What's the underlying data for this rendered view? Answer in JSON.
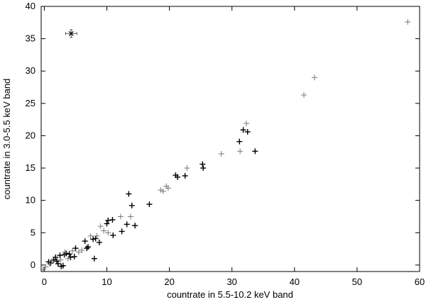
{
  "chart_data": {
    "type": "scatter",
    "title": "",
    "xlabel": "countrate in 5.5-10.2 keV band",
    "ylabel": "countrate in 3.0-5.5 keV band",
    "xlim": [
      -0.5,
      60
    ],
    "ylim": [
      -1,
      40
    ],
    "xticks": [
      0,
      10,
      20,
      30,
      40,
      50,
      60
    ],
    "yticks": [
      0,
      5,
      10,
      15,
      20,
      25,
      30,
      35,
      40
    ],
    "grid": false,
    "legend": "none",
    "series": [
      {
        "marker": "plus",
        "color": "#000000",
        "points": [
          [
            0.7,
            0.5
          ],
          [
            1.0,
            0.3
          ],
          [
            1.5,
            0.8
          ],
          [
            1.8,
            1.2
          ],
          [
            2.0,
            0.6
          ],
          [
            2.2,
            0.2
          ],
          [
            2.5,
            1.5
          ],
          [
            2.7,
            -0.2
          ],
          [
            3.0,
            -0.1
          ],
          [
            3.2,
            1.6
          ],
          [
            3.5,
            1.8
          ],
          [
            4.0,
            1.7
          ],
          [
            4.2,
            1.2
          ],
          [
            4.8,
            1.3
          ],
          [
            5.0,
            2.6
          ],
          [
            6.5,
            3.7
          ],
          [
            6.8,
            2.6
          ],
          [
            7.0,
            2.8
          ],
          [
            7.8,
            4.0
          ],
          [
            8.0,
            1.0
          ],
          [
            8.2,
            4.1
          ],
          [
            8.8,
            3.5
          ],
          [
            10.0,
            6.4
          ],
          [
            10.2,
            6.9
          ],
          [
            10.9,
            7.0
          ],
          [
            11.0,
            4.6
          ],
          [
            12.4,
            5.2
          ],
          [
            13.2,
            6.3
          ],
          [
            13.5,
            11.0
          ],
          [
            14.0,
            9.2
          ],
          [
            14.5,
            6.1
          ],
          [
            16.8,
            9.4
          ],
          [
            21.0,
            13.9
          ],
          [
            21.3,
            13.6
          ],
          [
            22.5,
            13.8
          ],
          [
            25.3,
            15.6
          ],
          [
            25.4,
            15.0
          ],
          [
            31.2,
            19.1
          ],
          [
            31.8,
            20.9
          ],
          [
            32.5,
            20.6
          ],
          [
            33.7,
            17.6
          ]
        ]
      },
      {
        "marker": "plus",
        "color": "#777777",
        "points": [
          [
            -0.2,
            -0.7
          ],
          [
            0.2,
            -0.3
          ],
          [
            0.8,
            0.2
          ],
          [
            1.2,
            0.6
          ],
          [
            2.6,
            0.8
          ],
          [
            3.3,
            2.0
          ],
          [
            3.8,
            1.0
          ],
          [
            4.5,
            2.2
          ],
          [
            5.5,
            2.0
          ],
          [
            6.0,
            2.3
          ],
          [
            7.4,
            4.5
          ],
          [
            8.4,
            4.5
          ],
          [
            9.0,
            6.0
          ],
          [
            9.5,
            5.3
          ],
          [
            10.2,
            5.0
          ],
          [
            12.2,
            7.5
          ],
          [
            13.8,
            7.5
          ],
          [
            18.6,
            11.6
          ],
          [
            19.0,
            11.4
          ],
          [
            19.5,
            12.2
          ],
          [
            19.8,
            11.9
          ],
          [
            22.8,
            15.0
          ],
          [
            28.3,
            17.2
          ],
          [
            31.3,
            17.6
          ],
          [
            32.3,
            21.9
          ],
          [
            41.5,
            26.3
          ],
          [
            43.2,
            29.0
          ],
          [
            58.1,
            37.6
          ]
        ]
      },
      {
        "marker": "cross-errorbar",
        "color": "#000000",
        "points": [
          [
            4.3,
            35.8
          ]
        ],
        "xerr": [
          0.9
        ],
        "yerr": [
          0.6
        ]
      }
    ]
  }
}
